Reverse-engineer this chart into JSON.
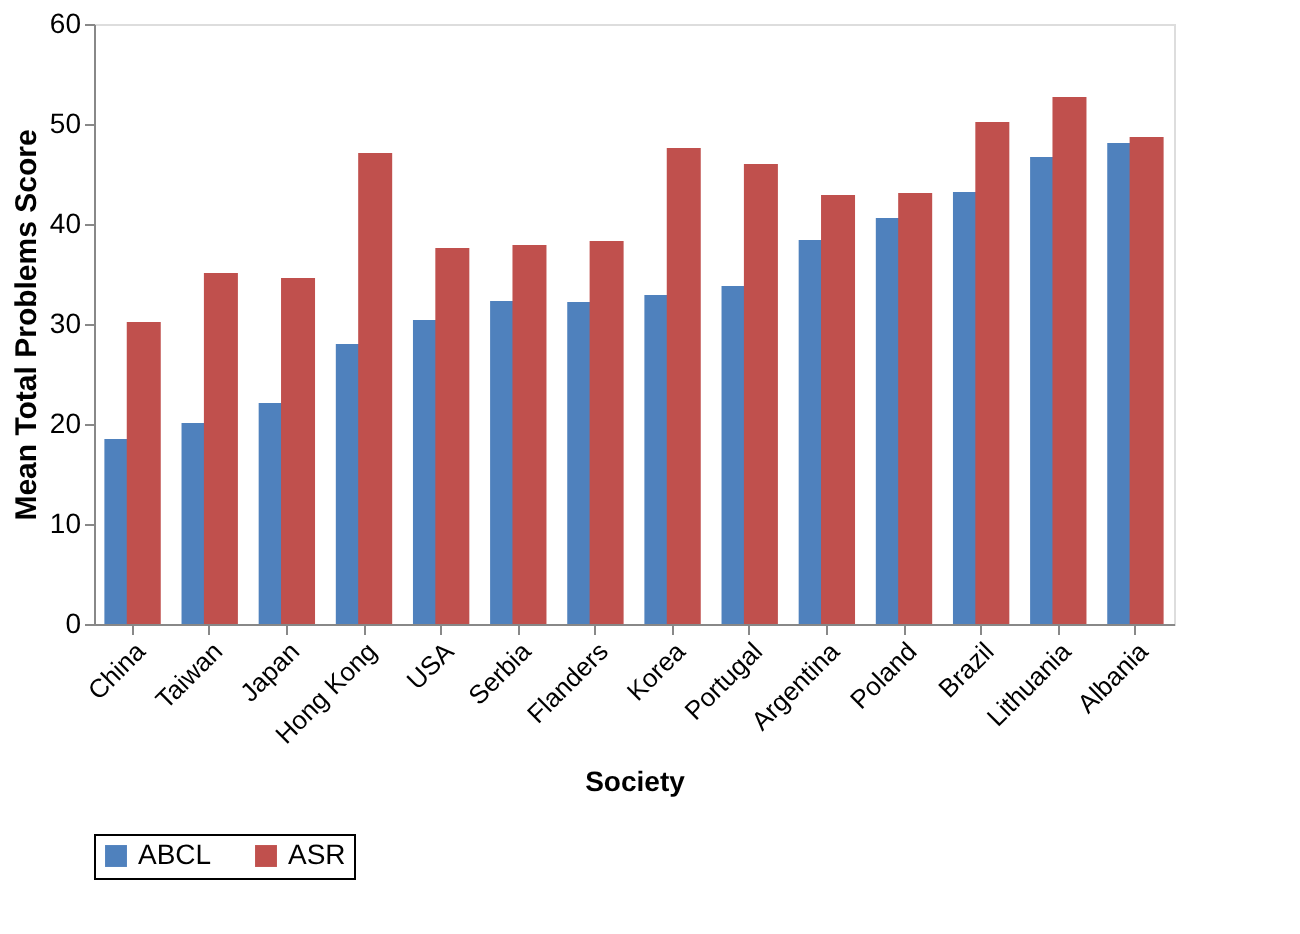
{
  "chart_data": {
    "type": "bar",
    "xlabel": "Society",
    "ylabel": "Mean Total Problems Score",
    "categories": [
      "China",
      "Taiwan",
      "Japan",
      "Hong Kong",
      "USA",
      "Serbia",
      "Flanders",
      "Korea",
      "Portugal",
      "Argentina",
      "Poland",
      "Brazil",
      "Lithuania",
      "Albania"
    ],
    "series": [
      {
        "name": "ABCL",
        "color": "#4f81bd",
        "values": [
          18.5,
          20.1,
          22.1,
          28.0,
          30.4,
          32.3,
          32.2,
          32.9,
          33.8,
          38.4,
          40.6,
          43.2,
          46.7,
          48.1
        ]
      },
      {
        "name": "ASR",
        "color": "#c0504d",
        "values": [
          30.2,
          35.1,
          34.6,
          47.1,
          37.6,
          37.9,
          38.3,
          47.6,
          46.0,
          42.9,
          43.1,
          50.2,
          52.7,
          48.7
        ]
      }
    ],
    "ylim": [
      0,
      60
    ],
    "yticks": [
      0,
      10,
      20,
      30,
      40,
      50,
      60
    ],
    "grid": false,
    "legend": "bottom"
  }
}
